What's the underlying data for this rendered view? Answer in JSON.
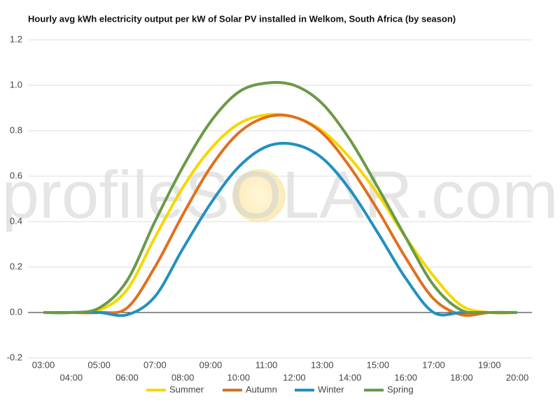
{
  "chart_data": {
    "type": "line",
    "title": "Hourly avg kWh electricity output per kW of Solar PV installed in Welkom, South Africa (by season)",
    "watermark": "profileSOLAR.com",
    "categories": [
      "03:00",
      "04:00",
      "05:00",
      "06:00",
      "07:00",
      "08:00",
      "09:00",
      "10:00",
      "11:00",
      "12:00",
      "13:00",
      "14:00",
      "15:00",
      "16:00",
      "17:00",
      "18:00",
      "19:00",
      "20:00"
    ],
    "series": [
      {
        "name": "Summer",
        "color": "#f5d800",
        "values": [
          0,
          0,
          0.01,
          0.1,
          0.33,
          0.55,
          0.72,
          0.83,
          0.87,
          0.86,
          0.8,
          0.68,
          0.52,
          0.33,
          0.16,
          0.03,
          0,
          0
        ]
      },
      {
        "name": "Autumn",
        "color": "#e07020",
        "values": [
          0,
          0,
          0,
          0.02,
          0.2,
          0.43,
          0.64,
          0.79,
          0.86,
          0.86,
          0.79,
          0.64,
          0.45,
          0.24,
          0.06,
          -0.01,
          0,
          0
        ]
      },
      {
        "name": "Winter",
        "color": "#2190c0",
        "values": [
          0,
          0,
          0,
          -0.01,
          0.07,
          0.28,
          0.48,
          0.64,
          0.73,
          0.74,
          0.68,
          0.54,
          0.35,
          0.15,
          0,
          0,
          0,
          0
        ]
      },
      {
        "name": "Spring",
        "color": "#6a9a48",
        "values": [
          0,
          0,
          0.02,
          0.14,
          0.4,
          0.64,
          0.84,
          0.97,
          1.01,
          1,
          0.92,
          0.76,
          0.55,
          0.33,
          0.12,
          0.01,
          0,
          0
        ]
      }
    ],
    "ylim": [
      -0.2,
      1.2
    ],
    "yticks": [
      -0.2,
      {
        "value": 0,
        "label": "0.0"
      },
      0.2,
      0.4,
      0.6,
      0.8,
      {
        "value": 1,
        "label": "1.0"
      },
      1.2
    ],
    "grid": true
  }
}
